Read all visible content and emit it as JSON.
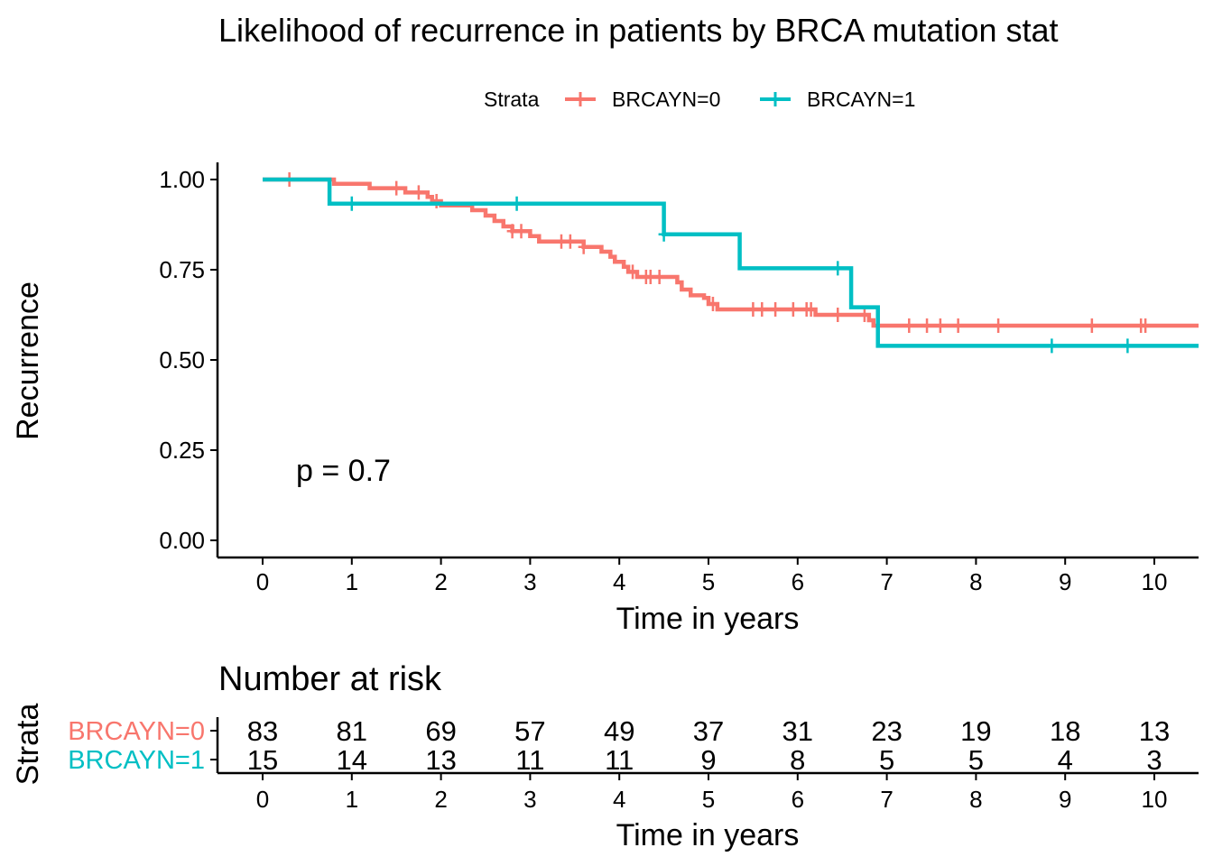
{
  "chart_data": [
    {
      "type": "line",
      "subtype": "kaplan-meier step",
      "title": "Likelihood of recurrence in patients by BRCA mutation stat",
      "xlabel": "Time in years",
      "ylabel": "Recurrence",
      "xlim": [
        -0.5,
        10.5
      ],
      "ylim": [
        -0.05,
        1.05
      ],
      "x_ticks": [
        "0",
        "1",
        "2",
        "3",
        "4",
        "5",
        "6",
        "7",
        "8",
        "9",
        "10"
      ],
      "y_ticks": [
        "0.00",
        "0.25",
        "0.50",
        "0.75",
        "1.00"
      ],
      "grid": false,
      "legend": {
        "title": "Strata",
        "position": "top"
      },
      "annotation": "p = 0.7",
      "series": [
        {
          "name": "BRCAYN=0",
          "color": "#F8766D",
          "steps": [
            [
              0,
              1.0
            ],
            [
              0.8,
              0.988
            ],
            [
              1.2,
              0.976
            ],
            [
              1.6,
              0.964
            ],
            [
              1.85,
              0.952
            ],
            [
              1.9,
              0.94
            ],
            [
              2.0,
              0.928
            ],
            [
              2.35,
              0.915
            ],
            [
              2.5,
              0.9
            ],
            [
              2.6,
              0.885
            ],
            [
              2.7,
              0.87
            ],
            [
              2.8,
              0.857
            ],
            [
              3.0,
              0.843
            ],
            [
              3.1,
              0.828
            ],
            [
              3.6,
              0.813
            ],
            [
              3.8,
              0.8
            ],
            [
              3.9,
              0.786
            ],
            [
              3.95,
              0.772
            ],
            [
              4.05,
              0.758
            ],
            [
              4.1,
              0.744
            ],
            [
              4.2,
              0.73
            ],
            [
              4.65,
              0.715
            ],
            [
              4.7,
              0.695
            ],
            [
              4.8,
              0.679
            ],
            [
              4.95,
              0.672
            ],
            [
              5.0,
              0.655
            ],
            [
              5.1,
              0.64
            ],
            [
              6.2,
              0.625
            ],
            [
              6.8,
              0.61
            ],
            [
              6.85,
              0.595
            ]
          ],
          "end_x": 10.5,
          "censor_times": [
            0.3,
            1.5,
            1.75,
            1.95,
            2.8,
            2.9,
            3.35,
            3.45,
            3.6,
            4.15,
            4.3,
            4.35,
            4.45,
            5.05,
            5.5,
            5.6,
            5.75,
            5.95,
            6.1,
            6.15,
            6.45,
            6.75,
            7.25,
            7.45,
            7.6,
            7.8,
            8.25,
            9.3,
            9.85,
            9.9
          ]
        },
        {
          "name": "BRCAYN=1",
          "color": "#00BFC4",
          "steps": [
            [
              0,
              1.0
            ],
            [
              0.75,
              0.933
            ],
            [
              4.5,
              0.848
            ],
            [
              5.35,
              0.754
            ],
            [
              6.6,
              0.646
            ],
            [
              6.9,
              0.539
            ]
          ],
          "end_x": 10.5,
          "censor_times": [
            1.0,
            2.85,
            4.5,
            6.45,
            8.85,
            9.7
          ]
        }
      ]
    },
    {
      "type": "table",
      "title": "Number at risk",
      "ylabel": "Strata",
      "xlabel": "Time in years",
      "x_ticks": [
        "0",
        "1",
        "2",
        "3",
        "4",
        "5",
        "6",
        "7",
        "8",
        "9",
        "10"
      ],
      "rows": [
        {
          "name": "BRCAYN=0",
          "color": "#F8766D",
          "values": [
            83,
            81,
            69,
            57,
            49,
            37,
            31,
            23,
            19,
            18,
            13
          ]
        },
        {
          "name": "BRCAYN=1",
          "color": "#00BFC4",
          "values": [
            15,
            14,
            13,
            11,
            11,
            9,
            8,
            5,
            5,
            4,
            3
          ]
        }
      ]
    }
  ]
}
